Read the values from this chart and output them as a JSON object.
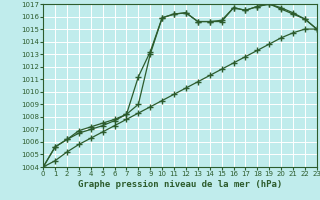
{
  "title": "Graphe pression niveau de la mer (hPa)",
  "bg_color": "#c0ecec",
  "line_color": "#2d5c2d",
  "xlim": [
    0,
    23
  ],
  "ylim": [
    1004,
    1017
  ],
  "xticks": [
    0,
    1,
    2,
    3,
    4,
    5,
    6,
    7,
    8,
    9,
    10,
    11,
    12,
    13,
    14,
    15,
    16,
    17,
    18,
    19,
    20,
    21,
    22,
    23
  ],
  "yticks": [
    1004,
    1005,
    1006,
    1007,
    1008,
    1009,
    1010,
    1011,
    1012,
    1013,
    1014,
    1015,
    1016,
    1017
  ],
  "line1_x": [
    0,
    1,
    2,
    3,
    4,
    5,
    6,
    7,
    8,
    9,
    10,
    11,
    12,
    13,
    14,
    15,
    16,
    17,
    18,
    19,
    20,
    21,
    22,
    23
  ],
  "line1_y": [
    1004.0,
    1004.5,
    1005.2,
    1005.8,
    1006.3,
    1006.8,
    1007.3,
    1007.8,
    1008.3,
    1008.8,
    1009.3,
    1009.8,
    1010.3,
    1010.8,
    1011.3,
    1011.8,
    1012.3,
    1012.8,
    1013.3,
    1013.8,
    1014.3,
    1014.7,
    1015.0,
    1015.0
  ],
  "line2_x": [
    0,
    1,
    2,
    3,
    4,
    5,
    6,
    7,
    8,
    9,
    10,
    11,
    12,
    13,
    14,
    15,
    16,
    17,
    18,
    19,
    20,
    21,
    22,
    23
  ],
  "line2_y": [
    1004.0,
    1005.6,
    1006.2,
    1006.7,
    1007.0,
    1007.3,
    1007.7,
    1008.2,
    1009.0,
    1013.0,
    1015.9,
    1016.2,
    1016.3,
    1015.6,
    1015.6,
    1015.6,
    1016.7,
    1016.5,
    1016.8,
    1017.0,
    1016.6,
    1016.2,
    1015.8,
    1015.0
  ],
  "line3_x": [
    0,
    1,
    2,
    3,
    4,
    5,
    6,
    7,
    8,
    9,
    10,
    11,
    12,
    13,
    14,
    15,
    16,
    17,
    18,
    19,
    20,
    21,
    22,
    23
  ],
  "line3_y": [
    1004.0,
    1005.6,
    1006.2,
    1006.9,
    1007.2,
    1007.5,
    1007.8,
    1008.2,
    1011.2,
    1013.2,
    1015.9,
    1016.2,
    1016.3,
    1015.6,
    1015.6,
    1015.7,
    1016.7,
    1016.5,
    1016.8,
    1017.0,
    1016.7,
    1016.3,
    1015.8,
    1015.0
  ]
}
